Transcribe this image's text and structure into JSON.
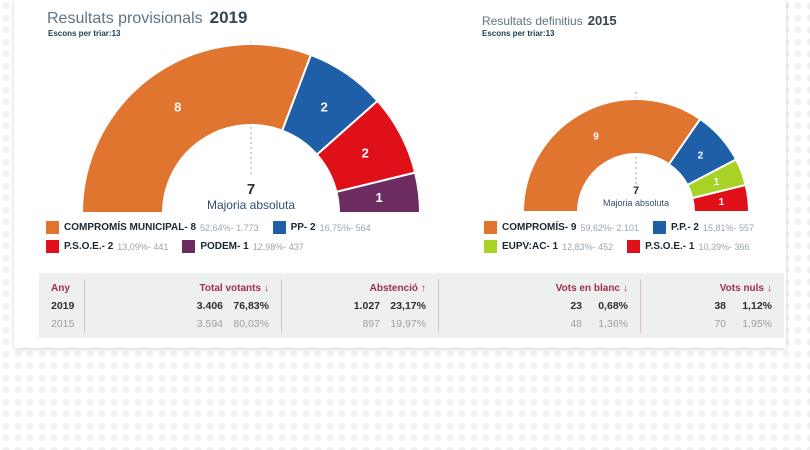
{
  "chart_data": [
    {
      "type": "pie",
      "variant": "half-donut-gauge",
      "title": "Resultats provisionals",
      "year": "2019",
      "subtitle": "Escons per triar:13",
      "total_seats": 13,
      "majority": {
        "seats": "7",
        "label": "Majoria absoluta"
      },
      "series": [
        {
          "name": "COMPROMÍS MUNICIPAL",
          "seats": 8,
          "label": "COMPROMÍS MUNICIPAL- 8",
          "stats": "52,64%- 1.773",
          "percent": "52,64%",
          "votes": "1.773",
          "color": "#e0752f"
        },
        {
          "name": "PP",
          "seats": 2,
          "label": "PP- 2",
          "stats": "16,75%- 564",
          "percent": "16,75%",
          "votes": "564",
          "color": "#1f5fa8"
        },
        {
          "name": "P.S.O.E.",
          "seats": 2,
          "label": "P.S.O.E.- 2",
          "stats": "13,09%- 441",
          "percent": "13,09%",
          "votes": "441",
          "color": "#e01019"
        },
        {
          "name": "PODEM",
          "seats": 1,
          "label": "PODEM- 1",
          "stats": "12,98%- 437",
          "percent": "12,98%",
          "votes": "437",
          "color": "#6d2c60"
        }
      ]
    },
    {
      "type": "pie",
      "variant": "half-donut-gauge",
      "title": "Resultats definitius",
      "year": "2015",
      "subtitle": "Escons per triar:13",
      "total_seats": 13,
      "majority": {
        "seats": "7",
        "label": "Majoria absoluta"
      },
      "series": [
        {
          "name": "COMPROMÍS",
          "seats": 9,
          "label": "COMPROMÍS- 9",
          "stats": "59,62%- 2.101",
          "percent": "59,62%",
          "votes": "2.101",
          "color": "#e0752f"
        },
        {
          "name": "P.P.",
          "seats": 2,
          "label": "P.P.- 2",
          "stats": "15,81%- 557",
          "percent": "15,81%",
          "votes": "557",
          "color": "#1f5fa8"
        },
        {
          "name": "EUPV:AC",
          "seats": 1,
          "label": "EUPV:AC- 1",
          "stats": "12,83%- 452",
          "percent": "12,83%",
          "votes": "452",
          "color": "#a8d326"
        },
        {
          "name": "P.S.O.E.",
          "seats": 1,
          "label": "P.S.O.E.- 1",
          "stats": "10,39%- 366",
          "percent": "10,39%",
          "votes": "366",
          "color": "#e01019"
        }
      ]
    },
    {
      "type": "table",
      "columns": [
        {
          "label": "Any",
          "sort": ""
        },
        {
          "label": "Total votants",
          "sort": "↓"
        },
        {
          "label": "Abstenció",
          "sort": "↑"
        },
        {
          "label": "Vots en blanc",
          "sort": "↓"
        },
        {
          "label": "Vots nuls",
          "sort": "↓"
        }
      ],
      "rows": [
        {
          "year": "2019",
          "emphasis": true,
          "cells": [
            [
              "3.406",
              "76,83%"
            ],
            [
              "1.027",
              "23,17%"
            ],
            [
              "23",
              "0,68%"
            ],
            [
              "38",
              "1,12%"
            ]
          ]
        },
        {
          "year": "2015",
          "emphasis": false,
          "cells": [
            [
              "3.594",
              "80,03%"
            ],
            [
              "897",
              "19,97%"
            ],
            [
              "48",
              "1,36%"
            ],
            [
              "70",
              "1,95%"
            ]
          ]
        }
      ]
    }
  ]
}
